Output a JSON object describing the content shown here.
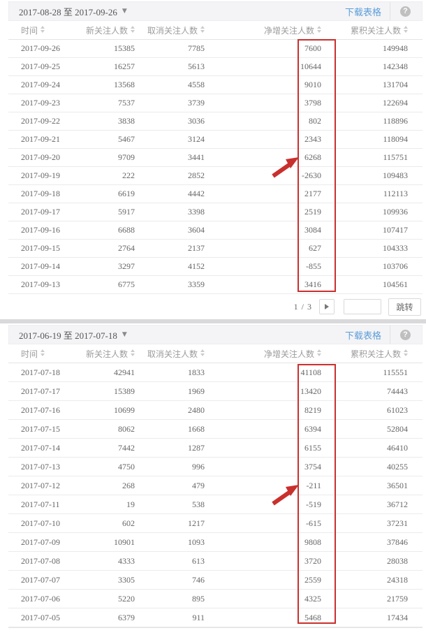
{
  "labels": {
    "download": "下载表格",
    "jump": "跳转",
    "help": "?",
    "caret": "▼"
  },
  "columns": [
    "时间",
    "新关注人数",
    "取消关注人数",
    "净增关注人数",
    "累积关注人数"
  ],
  "colors": {
    "link_blue": "#5b9dd9",
    "annotation_red": "#c9302d",
    "header_text": "#9c9c9c",
    "body_text": "#666666",
    "topbar_bg": "#f4f4f6"
  },
  "pagination": {
    "display": "1 / 3",
    "current_page": "1",
    "total_pages": "3",
    "input_value": ""
  },
  "annotations": {
    "highlighted_column": "净增关注人数",
    "arrow_target_table1": "6268",
    "arrow_target_table2": "-211"
  },
  "tables": [
    {
      "date_range": "2017-08-28 至 2017-09-26",
      "rows": [
        [
          "2017-09-26",
          "15385",
          "7785",
          "7600",
          "149948"
        ],
        [
          "2017-09-25",
          "16257",
          "5613",
          "10644",
          "142348"
        ],
        [
          "2017-09-24",
          "13568",
          "4558",
          "9010",
          "131704"
        ],
        [
          "2017-09-23",
          "7537",
          "3739",
          "3798",
          "122694"
        ],
        [
          "2017-09-22",
          "3838",
          "3036",
          "802",
          "118896"
        ],
        [
          "2017-09-21",
          "5467",
          "3124",
          "2343",
          "118094"
        ],
        [
          "2017-09-20",
          "9709",
          "3441",
          "6268",
          "115751"
        ],
        [
          "2017-09-19",
          "222",
          "2852",
          "-2630",
          "109483"
        ],
        [
          "2017-09-18",
          "6619",
          "4442",
          "2177",
          "112113"
        ],
        [
          "2017-09-17",
          "5917",
          "3398",
          "2519",
          "109936"
        ],
        [
          "2017-09-16",
          "6688",
          "3604",
          "3084",
          "107417"
        ],
        [
          "2017-09-15",
          "2764",
          "2137",
          "627",
          "104333"
        ],
        [
          "2017-09-14",
          "3297",
          "4152",
          "-855",
          "103706"
        ],
        [
          "2017-09-13",
          "6775",
          "3359",
          "3416",
          "104561"
        ]
      ]
    },
    {
      "date_range": "2017-06-19 至 2017-07-18",
      "rows": [
        [
          "2017-07-18",
          "42941",
          "1833",
          "41108",
          "115551"
        ],
        [
          "2017-07-17",
          "15389",
          "1969",
          "13420",
          "74443"
        ],
        [
          "2017-07-16",
          "10699",
          "2480",
          "8219",
          "61023"
        ],
        [
          "2017-07-15",
          "8062",
          "1668",
          "6394",
          "52804"
        ],
        [
          "2017-07-14",
          "7442",
          "1287",
          "6155",
          "46410"
        ],
        [
          "2017-07-13",
          "4750",
          "996",
          "3754",
          "40255"
        ],
        [
          "2017-07-12",
          "268",
          "479",
          "-211",
          "36501"
        ],
        [
          "2017-07-11",
          "19",
          "538",
          "-519",
          "36712"
        ],
        [
          "2017-07-10",
          "602",
          "1217",
          "-615",
          "37231"
        ],
        [
          "2017-07-09",
          "10901",
          "1093",
          "9808",
          "37846"
        ],
        [
          "2017-07-08",
          "4333",
          "613",
          "3720",
          "28038"
        ],
        [
          "2017-07-07",
          "3305",
          "746",
          "2559",
          "24318"
        ],
        [
          "2017-07-06",
          "5220",
          "895",
          "4325",
          "21759"
        ],
        [
          "2017-07-05",
          "6379",
          "911",
          "5468",
          "17434"
        ]
      ]
    }
  ]
}
